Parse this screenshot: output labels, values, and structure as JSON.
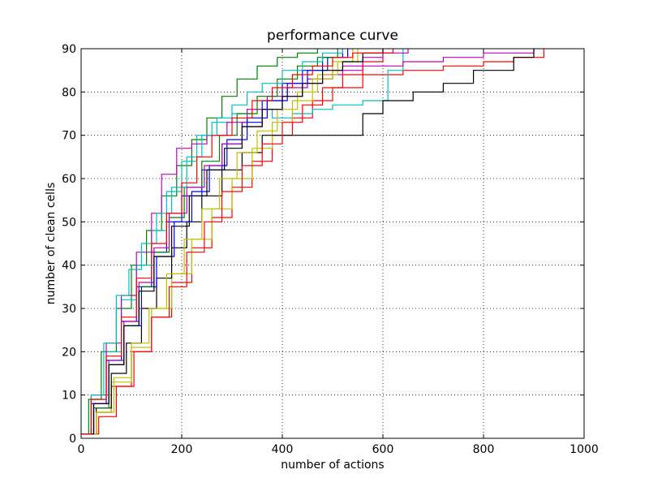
{
  "chart_data": {
    "type": "line",
    "title": "performance curve",
    "xlabel": "number of actions",
    "ylabel": "number of clean cells",
    "xlim": [
      0,
      1000
    ],
    "ylim": [
      0,
      90
    ],
    "xticks": [
      0,
      200,
      400,
      600,
      800,
      1000
    ],
    "yticks": [
      0,
      10,
      20,
      30,
      40,
      50,
      60,
      70,
      80,
      90
    ],
    "xtick_labels": [
      "0",
      "200",
      "400",
      "600",
      "800",
      "1000"
    ],
    "ytick_labels": [
      "0",
      "10",
      "20",
      "30",
      "40",
      "50",
      "60",
      "70",
      "80",
      "90"
    ],
    "grid": true,
    "step": true,
    "series": [
      {
        "color": "#0000ff",
        "x": [
          0,
          20,
          50,
          80,
          110,
          140,
          170,
          200,
          240,
          280,
          320,
          360,
          400,
          440,
          480,
          520
        ],
        "y": [
          1,
          8,
          18,
          27,
          35,
          43,
          50,
          56,
          62,
          68,
          73,
          78,
          82,
          85,
          88,
          90
        ]
      },
      {
        "color": "#008000",
        "x": [
          0,
          15,
          40,
          70,
          100,
          130,
          160,
          190,
          220,
          250,
          280,
          310,
          350,
          390,
          430,
          470
        ],
        "y": [
          1,
          9,
          20,
          30,
          40,
          48,
          56,
          63,
          69,
          74,
          79,
          83,
          86,
          88,
          89,
          90
        ]
      },
      {
        "color": "#ff0000",
        "x": [
          0,
          30,
          60,
          100,
          140,
          180,
          220,
          260,
          300,
          340,
          380,
          420,
          460,
          500,
          560,
          640,
          720,
          800,
          860,
          920
        ],
        "y": [
          1,
          6,
          12,
          20,
          28,
          36,
          44,
          51,
          58,
          64,
          70,
          74,
          78,
          81,
          84,
          85,
          86,
          87,
          88,
          90
        ]
      },
      {
        "color": "#00bfbf",
        "x": [
          0,
          20,
          50,
          80,
          110,
          140,
          170,
          200,
          230,
          260,
          300,
          340,
          380,
          420,
          460,
          500,
          560,
          610,
          640
        ],
        "y": [
          1,
          9,
          20,
          32,
          40,
          48,
          57,
          64,
          70,
          73,
          75,
          76,
          74,
          75,
          76,
          77,
          78,
          85,
          90
        ]
      },
      {
        "color": "#bf00bf",
        "x": [
          0,
          20,
          50,
          80,
          110,
          140,
          160,
          190,
          220,
          250,
          290,
          330,
          370,
          410,
          450,
          500,
          560,
          640,
          720,
          800,
          900
        ],
        "y": [
          1,
          10,
          22,
          33,
          43,
          52,
          61,
          67,
          68,
          70,
          73,
          76,
          79,
          81,
          83,
          85,
          86,
          87,
          88,
          89,
          90
        ]
      },
      {
        "color": "#bfbf00",
        "x": [
          0,
          30,
          60,
          100,
          140,
          180,
          220,
          260,
          300,
          340,
          380,
          420,
          460,
          500,
          540
        ],
        "y": [
          1,
          6,
          13,
          21,
          30,
          38,
          46,
          53,
          60,
          67,
          73,
          78,
          83,
          87,
          90
        ]
      },
      {
        "color": "#000000",
        "x": [
          0,
          30,
          60,
          90,
          120,
          150,
          180,
          210,
          240,
          280,
          320,
          360,
          400,
          440,
          480,
          520,
          560,
          600,
          660,
          720,
          780,
          860,
          900
        ],
        "y": [
          1,
          7,
          15,
          22,
          30,
          37,
          44,
          50,
          56,
          62,
          66,
          70,
          70,
          70,
          70,
          70,
          75,
          78,
          80,
          82,
          85,
          88,
          90
        ]
      },
      {
        "color": "#0000ff",
        "x": [
          0,
          25,
          55,
          85,
          120,
          150,
          185,
          220,
          255,
          290,
          330,
          370,
          410,
          450,
          490,
          530
        ],
        "y": [
          1,
          8,
          17,
          26,
          35,
          42,
          50,
          57,
          63,
          69,
          74,
          78,
          82,
          85,
          88,
          90
        ]
      },
      {
        "color": "#008000",
        "x": [
          0,
          25,
          55,
          85,
          115,
          145,
          175,
          205,
          240,
          275,
          310,
          350,
          390,
          430,
          470,
          510
        ],
        "y": [
          1,
          7,
          17,
          26,
          35,
          43,
          51,
          58,
          64,
          70,
          75,
          79,
          83,
          86,
          88,
          90
        ]
      },
      {
        "color": "#ff0000",
        "x": [
          0,
          35,
          70,
          105,
          140,
          175,
          210,
          245,
          280,
          320,
          360,
          400,
          440,
          480,
          520,
          560,
          600
        ],
        "y": [
          1,
          5,
          12,
          20,
          28,
          35,
          43,
          50,
          57,
          63,
          68,
          73,
          77,
          81,
          84,
          87,
          90
        ]
      },
      {
        "color": "#00bfbf",
        "x": [
          0,
          20,
          45,
          70,
          95,
          120,
          150,
          180,
          210,
          240,
          270,
          300,
          330,
          360,
          400,
          440,
          480,
          520
        ],
        "y": [
          1,
          10,
          22,
          33,
          39,
          45,
          52,
          58,
          65,
          70,
          74,
          77,
          80,
          82,
          85,
          87,
          89,
          90
        ]
      },
      {
        "color": "#bf00bf",
        "x": [
          0,
          25,
          55,
          85,
          115,
          145,
          175,
          210,
          245,
          280,
          320,
          360,
          400,
          440,
          480,
          520,
          560,
          600,
          650
        ],
        "y": [
          1,
          8,
          18,
          27,
          36,
          44,
          52,
          58,
          63,
          68,
          72,
          76,
          79,
          82,
          84,
          86,
          88,
          89,
          90
        ]
      },
      {
        "color": "#bfbf00",
        "x": [
          0,
          30,
          65,
          100,
          135,
          170,
          205,
          240,
          275,
          310,
          350,
          390,
          430,
          470,
          510,
          550
        ],
        "y": [
          1,
          6,
          14,
          22,
          30,
          38,
          46,
          53,
          60,
          66,
          71,
          76,
          80,
          84,
          87,
          90
        ]
      },
      {
        "color": "#000000",
        "x": [
          0,
          25,
          55,
          85,
          115,
          145,
          180,
          215,
          250,
          285,
          320,
          360,
          400,
          440,
          480,
          520,
          560,
          600
        ],
        "y": [
          1,
          8,
          17,
          26,
          34,
          42,
          49,
          56,
          62,
          67,
          72,
          76,
          79,
          82,
          85,
          87,
          89,
          90
        ]
      },
      {
        "color": "#ff0000",
        "x": [
          0,
          20,
          50,
          80,
          110,
          140,
          170,
          200,
          230,
          260,
          300,
          340,
          380,
          420,
          460,
          500,
          540,
          580,
          620
        ],
        "y": [
          1,
          9,
          19,
          28,
          37,
          45,
          52,
          59,
          65,
          70,
          74,
          78,
          81,
          84,
          86,
          88,
          89,
          89,
          90
        ]
      }
    ]
  }
}
